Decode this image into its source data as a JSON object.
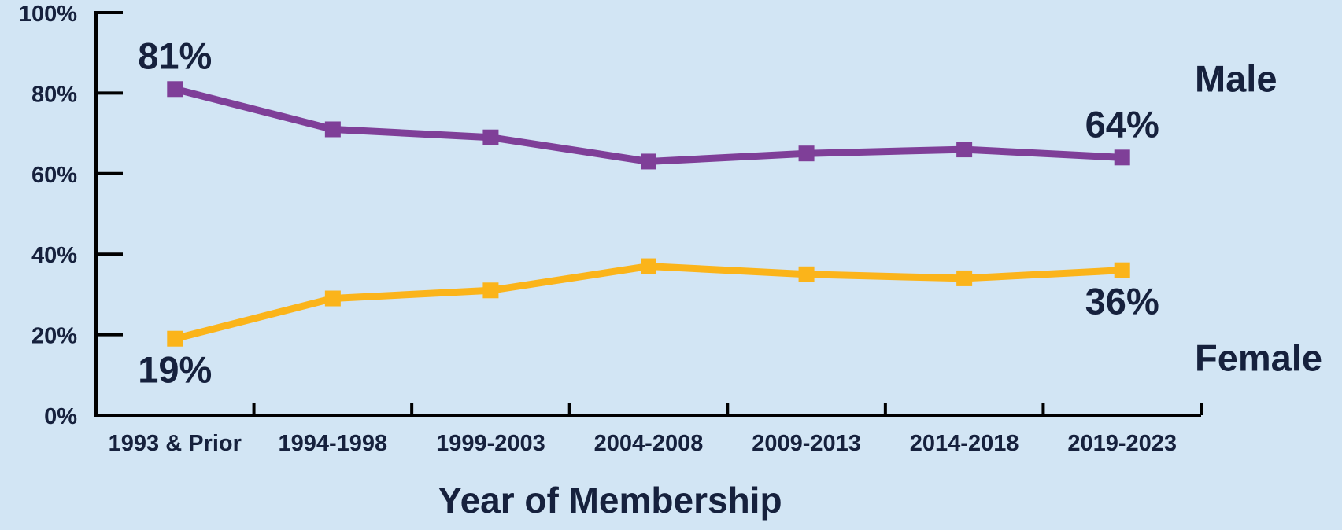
{
  "chart_data": {
    "type": "line",
    "title": "",
    "xlabel": "Year of Membership",
    "ylabel": "",
    "categories": [
      "1993 & Prior",
      "1994-1998",
      "1999-2003",
      "2004-2008",
      "2009-2013",
      "2014-2018",
      "2019-2023"
    ],
    "ylim": [
      0,
      100
    ],
    "yticks": [
      {
        "value": 0,
        "label": "0%"
      },
      {
        "value": 20,
        "label": "20%"
      },
      {
        "value": 40,
        "label": "40%"
      },
      {
        "value": 60,
        "label": "60%"
      },
      {
        "value": 80,
        "label": "80%"
      },
      {
        "value": 100,
        "label": "100%"
      }
    ],
    "grid": false,
    "series": [
      {
        "name": "Male",
        "color": "#7f3f98",
        "values": [
          81,
          71,
          69,
          63,
          65,
          66,
          64
        ],
        "labels": [
          {
            "index": 0,
            "text": "81%"
          },
          {
            "index": 6,
            "text": "64%"
          }
        ]
      },
      {
        "name": "Female",
        "color": "#fbb41a",
        "values": [
          19,
          29,
          31,
          37,
          35,
          34,
          36
        ],
        "labels": [
          {
            "index": 0,
            "text": "19%"
          },
          {
            "index": 6,
            "text": "36%"
          }
        ]
      }
    ],
    "legend": "right, inline next to series"
  }
}
